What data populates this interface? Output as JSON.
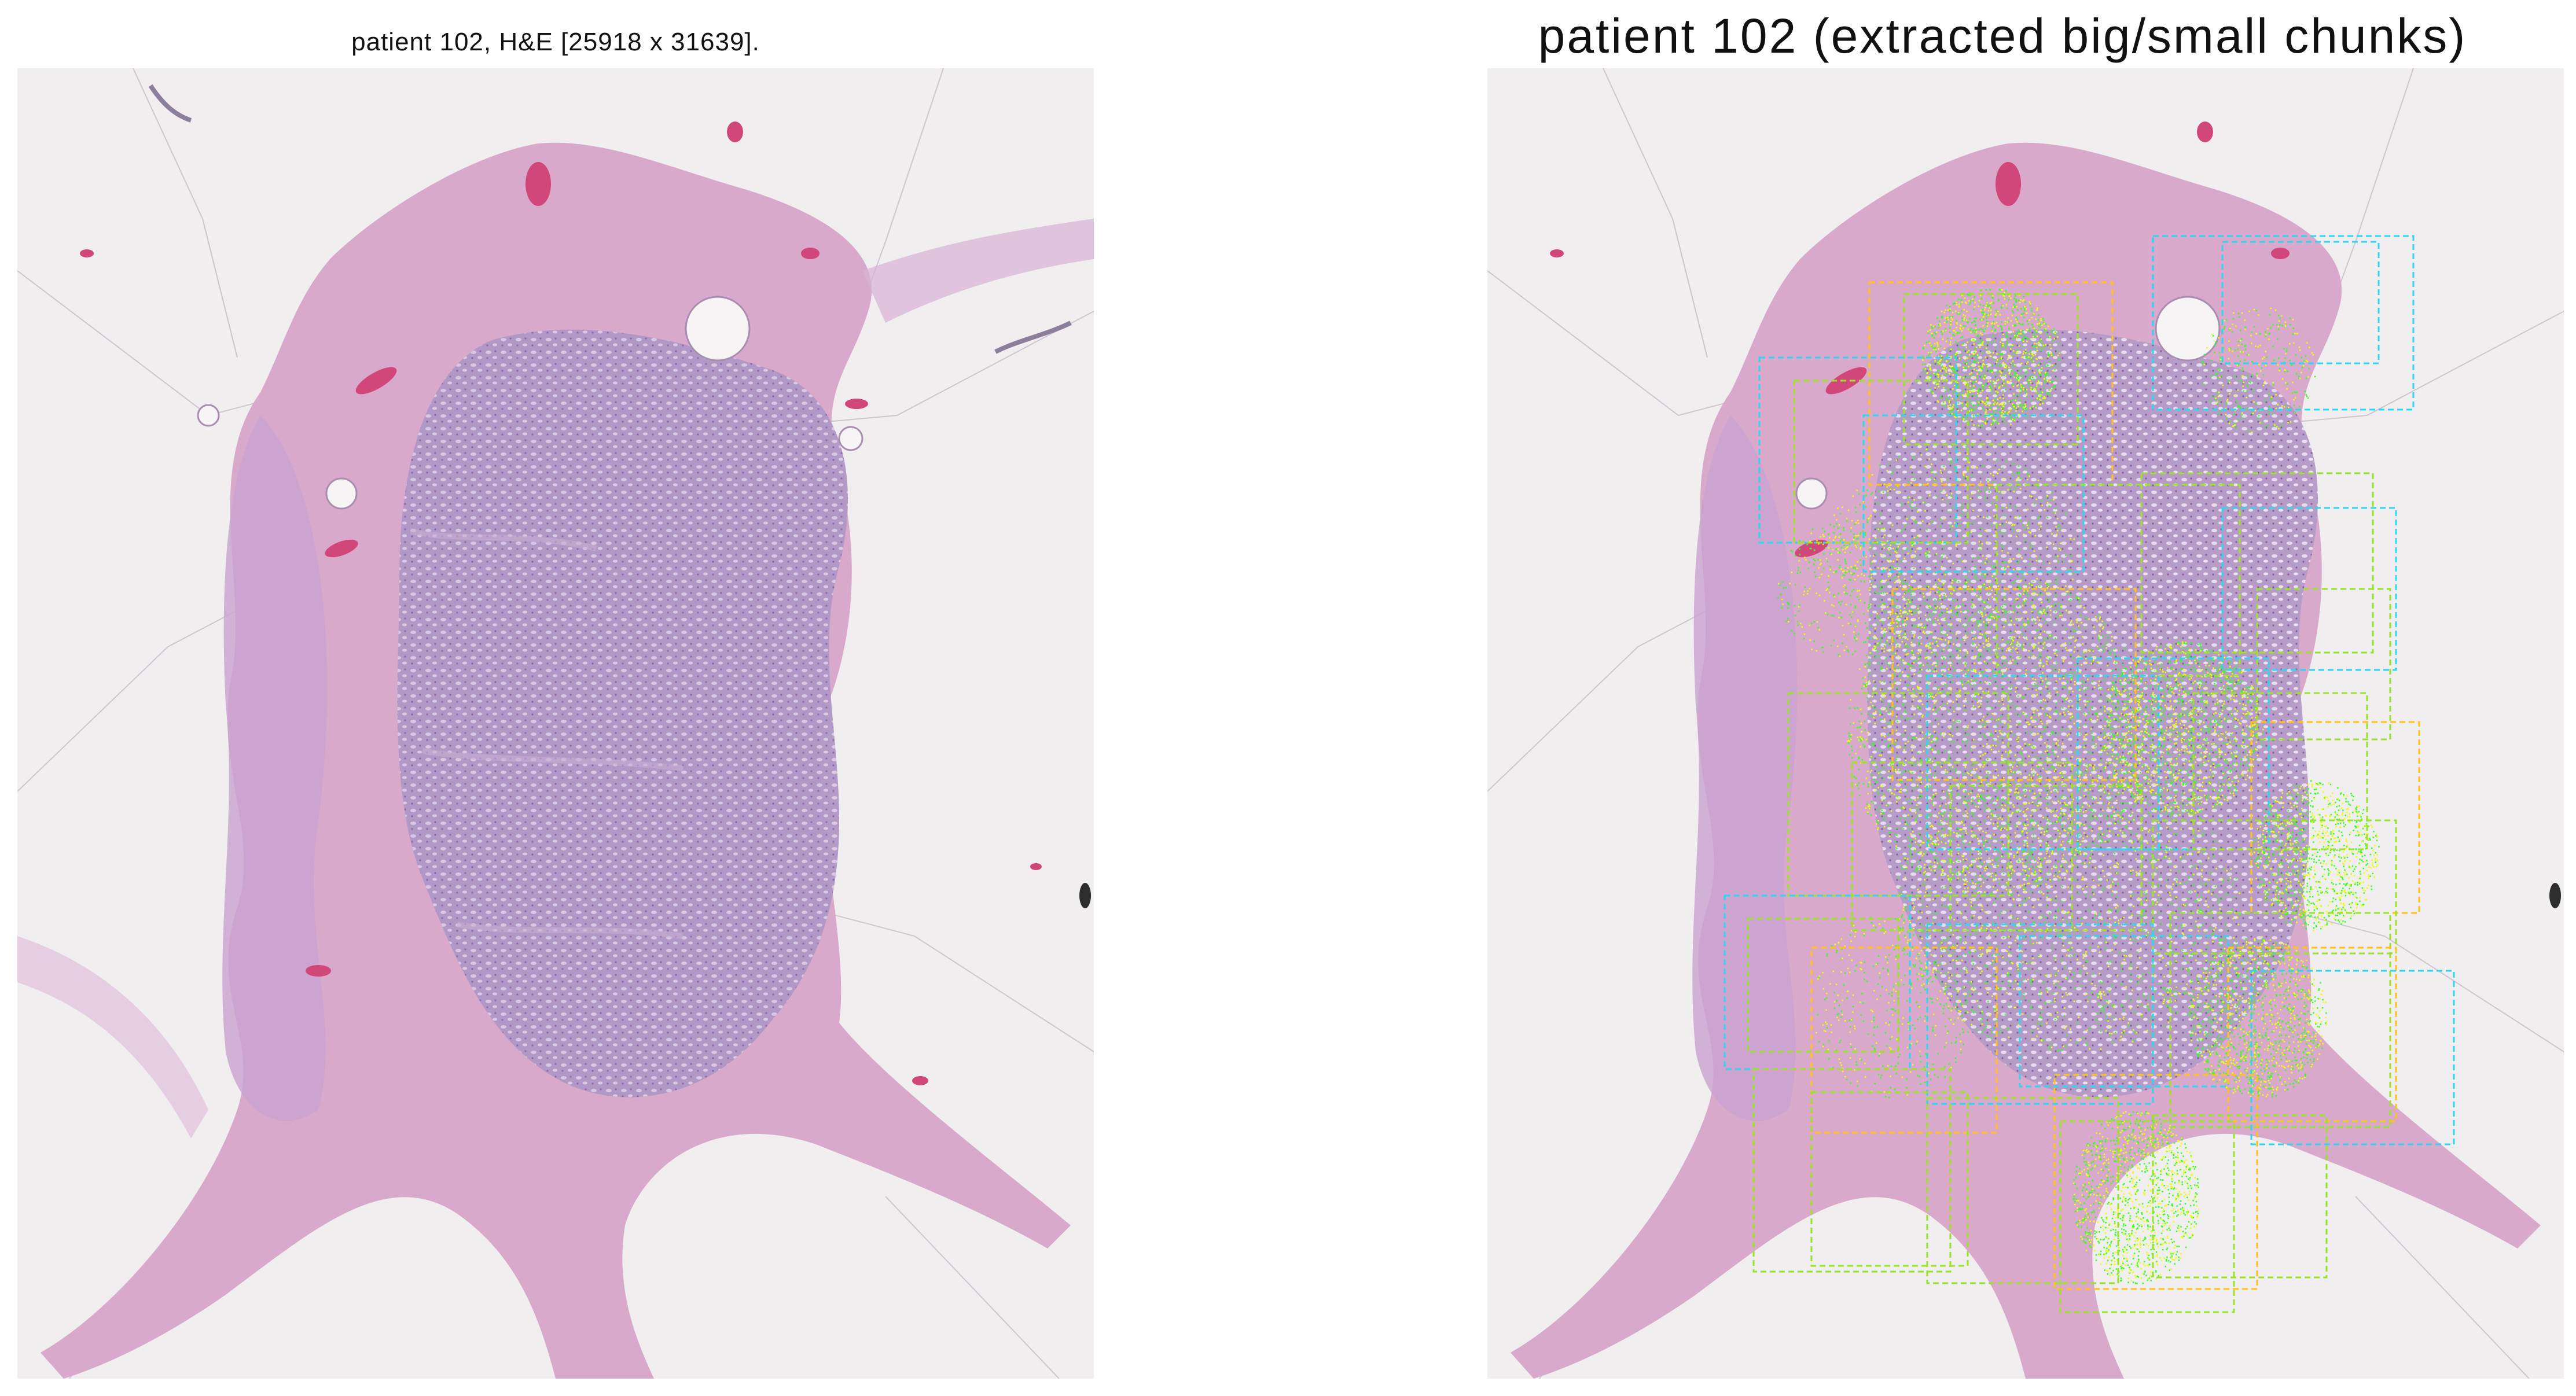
{
  "figure": {
    "left_title": "patient 102, H&E [25918 x 31639].",
    "right_title": "patient 102 (extracted big/small chunks)"
  },
  "colors": {
    "background": "#f1eef0",
    "tissue_pink": "#d9a6c8",
    "tissue_purple": "#b79ac4",
    "vessel_red": "#d2477a",
    "box_cyan": "#2fd6f0",
    "box_yellow": "#ffc21a",
    "box_green": "#9be22a",
    "point_green": "#33ff22",
    "point_yellow": "#f0ff00"
  }
}
